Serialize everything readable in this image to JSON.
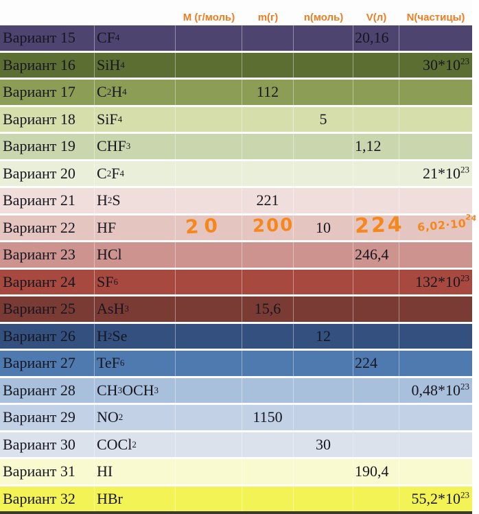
{
  "header": {
    "accent_color": "#e97e23",
    "columns": [
      {
        "label": "M (г/моль)"
      },
      {
        "label": "m(г)"
      },
      {
        "label": "n(моль)"
      },
      {
        "label": "V(л)"
      },
      {
        "label": "N(частицы)"
      }
    ]
  },
  "table": {
    "text_color": "#16161f",
    "handwriting_color": "#f6871d",
    "rows": [
      {
        "variant": "Вариант 15",
        "formula": "CF_4",
        "M": "",
        "m": "",
        "n": "",
        "V": "20,16",
        "N": "",
        "bg": "#4d4470"
      },
      {
        "variant": "Вариант 16",
        "formula": "SiH_4",
        "M": "",
        "m": "",
        "n": "",
        "V": "",
        "N": "30*10^23",
        "bg": "#5d6e33"
      },
      {
        "variant": "Вариант 17",
        "formula": "C_2H_4",
        "M": "",
        "m": "112",
        "n": "",
        "V": "",
        "N": "",
        "bg": "#8c9d55"
      },
      {
        "variant": "Вариант 18",
        "formula": "SiF_4",
        "M": "",
        "m": "",
        "n": "5",
        "V": "",
        "N": "",
        "bg": "#d6deac"
      },
      {
        "variant": "Вариант 19",
        "formula": "CHF_3",
        "M": "",
        "m": "",
        "n": "",
        "V": "1,12",
        "N": "",
        "bg": "#cad7ae"
      },
      {
        "variant": "Вариант 20",
        "formula": "C_2F_4",
        "M": "",
        "m": "",
        "n": "",
        "V": "",
        "N": "21*10^23",
        "bg": "#e9efd9"
      },
      {
        "variant": "Вариант 21",
        "formula": "H_2S",
        "M": "",
        "m": "221",
        "n": "",
        "V": "",
        "N": "",
        "bg": "#f0dedc"
      },
      {
        "variant": "Вариант 22",
        "formula": "HF",
        "M": "",
        "m": "",
        "n": "10",
        "V": "",
        "N": "",
        "bg": "#e4c5c0",
        "hand": {
          "M": "20",
          "m": "200",
          "V": "224",
          "N": "6,02·10^24"
        }
      },
      {
        "variant": "Вариант 23",
        "formula": "HCl",
        "M": "",
        "m": "",
        "n": "",
        "V": "246,4",
        "N": "",
        "bg": "#cc938f"
      },
      {
        "variant": "Вариант 24",
        "formula": "SF_6",
        "M": "",
        "m": "",
        "n": "",
        "V": "",
        "N": "132*10^23",
        "bg": "#a8493f"
      },
      {
        "variant": "Вариант 25",
        "formula": "AsH_3",
        "M": "",
        "m": "15,6",
        "n": "",
        "V": "",
        "N": "",
        "bg": "#7a3b35"
      },
      {
        "variant": "Вариант 26",
        "formula": "H_2Se",
        "M": "",
        "m": "",
        "n": "12",
        "V": "",
        "N": "",
        "bg": "#33507e"
      },
      {
        "variant": "Вариант 27",
        "formula": "TeF_6",
        "M": "",
        "m": "",
        "n": "",
        "V": "224",
        "N": "",
        "bg": "#4f7ab0"
      },
      {
        "variant": "Вариант 28",
        "formula": "CH_3OCH_3",
        "M": "",
        "m": "",
        "n": "",
        "V": "",
        "N": "0,48*10^23",
        "bg": "#a9c0dc"
      },
      {
        "variant": "Вариант 29",
        "formula": "NO_2",
        "M": "",
        "m": "1150",
        "n": "",
        "V": "",
        "N": "",
        "bg": "#c2d1e6"
      },
      {
        "variant": "Вариант 30",
        "formula": "COCl_2",
        "M": "",
        "m": "",
        "n": "30",
        "V": "",
        "N": "",
        "bg": "#dbe2ec"
      },
      {
        "variant": "Вариант 31",
        "formula": "HI",
        "M": "",
        "m": "",
        "n": "",
        "V": "190,4",
        "N": "",
        "bg": "#fafad0"
      },
      {
        "variant": "Вариант 32",
        "formula": "HBr",
        "M": "",
        "m": "",
        "n": "",
        "V": "",
        "N": "55,2*10^23",
        "bg": "#f3f355"
      }
    ]
  }
}
